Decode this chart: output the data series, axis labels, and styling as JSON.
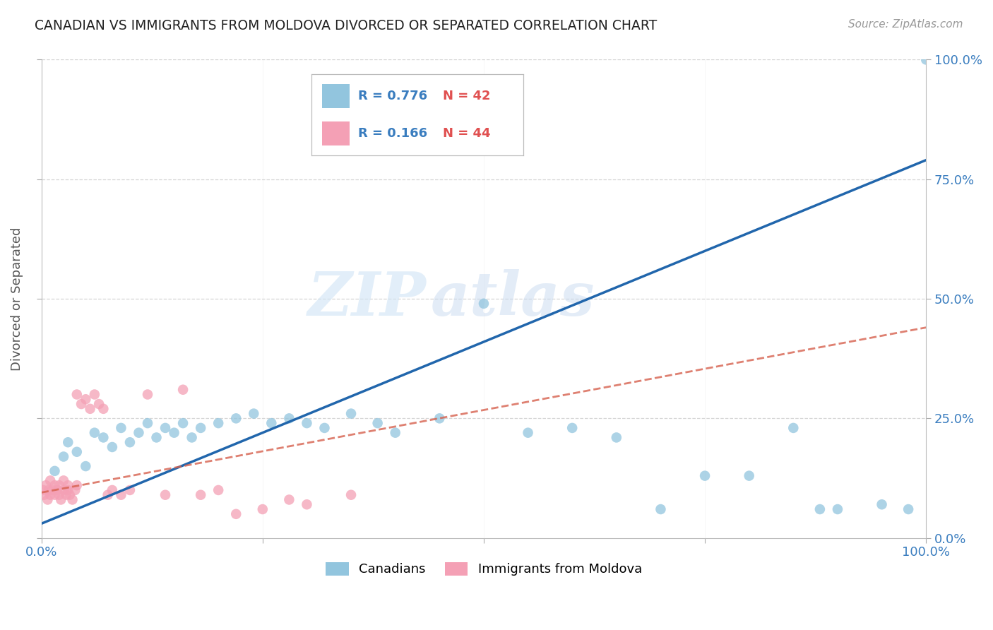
{
  "title": "CANADIAN VS IMMIGRANTS FROM MOLDOVA DIVORCED OR SEPARATED CORRELATION CHART",
  "source": "Source: ZipAtlas.com",
  "ylabel": "Divorced or Separated",
  "xlim": [
    0,
    100
  ],
  "ylim": [
    0,
    100
  ],
  "ytick_positions": [
    0,
    25,
    50,
    75,
    100
  ],
  "ytick_labels_right": [
    "0.0%",
    "25.0%",
    "50.0%",
    "75.0%",
    "100.0%"
  ],
  "watermark_line1": "ZIP",
  "watermark_line2": "atlas",
  "legend_entry1_r": "0.776",
  "legend_entry1_n": "42",
  "legend_entry2_r": "0.166",
  "legend_entry2_n": "44",
  "canadians_color": "#92c5de",
  "moldova_color": "#f4a0b5",
  "trendline_blue_color": "#2166ac",
  "trendline_pink_color": "#d6604d",
  "background_color": "#ffffff",
  "grid_color": "#cccccc",
  "can_x": [
    1.5,
    2.5,
    3.0,
    4.0,
    5.0,
    6.0,
    7.0,
    8.0,
    9.0,
    10.0,
    11.0,
    12.0,
    13.0,
    14.0,
    15.0,
    16.0,
    17.0,
    18.0,
    20.0,
    22.0,
    24.0,
    26.0,
    28.0,
    30.0,
    32.0,
    35.0,
    38.0,
    40.0,
    45.0,
    50.0,
    55.0,
    60.0,
    65.0,
    70.0,
    75.0,
    80.0,
    85.0,
    88.0,
    90.0,
    95.0,
    98.0,
    100.0
  ],
  "can_y": [
    14.0,
    17.0,
    20.0,
    18.0,
    15.0,
    22.0,
    21.0,
    19.0,
    23.0,
    20.0,
    22.0,
    24.0,
    21.0,
    23.0,
    22.0,
    24.0,
    21.0,
    23.0,
    24.0,
    25.0,
    26.0,
    24.0,
    25.0,
    24.0,
    23.0,
    26.0,
    24.0,
    22.0,
    25.0,
    49.0,
    22.0,
    23.0,
    21.0,
    6.0,
    13.0,
    13.0,
    23.0,
    6.0,
    6.0,
    7.0,
    6.0,
    100.0
  ],
  "mol_x": [
    0.2,
    0.3,
    0.5,
    0.7,
    0.8,
    1.0,
    1.0,
    1.2,
    1.5,
    1.5,
    1.8,
    2.0,
    2.0,
    2.2,
    2.5,
    2.5,
    2.8,
    3.0,
    3.0,
    3.2,
    3.5,
    3.8,
    4.0,
    4.0,
    4.5,
    5.0,
    5.5,
    6.0,
    6.5,
    7.0,
    7.5,
    8.0,
    9.0,
    10.0,
    12.0,
    14.0,
    16.0,
    18.0,
    20.0,
    22.0,
    25.0,
    28.0,
    30.0,
    35.0
  ],
  "mol_y": [
    10.0,
    9.0,
    11.0,
    8.0,
    10.0,
    9.0,
    12.0,
    10.0,
    9.0,
    11.0,
    10.0,
    9.0,
    11.0,
    8.0,
    10.0,
    12.0,
    9.0,
    10.0,
    11.0,
    9.0,
    8.0,
    10.0,
    11.0,
    30.0,
    28.0,
    29.0,
    27.0,
    30.0,
    28.0,
    27.0,
    9.0,
    10.0,
    9.0,
    10.0,
    30.0,
    9.0,
    31.0,
    9.0,
    10.0,
    5.0,
    6.0,
    8.0,
    7.0,
    9.0
  ],
  "can_trendline_x": [
    0,
    100
  ],
  "can_trendline_y": [
    3.0,
    79.0
  ],
  "mol_trendline_x": [
    0,
    100
  ],
  "mol_trendline_y": [
    9.5,
    44.0
  ]
}
